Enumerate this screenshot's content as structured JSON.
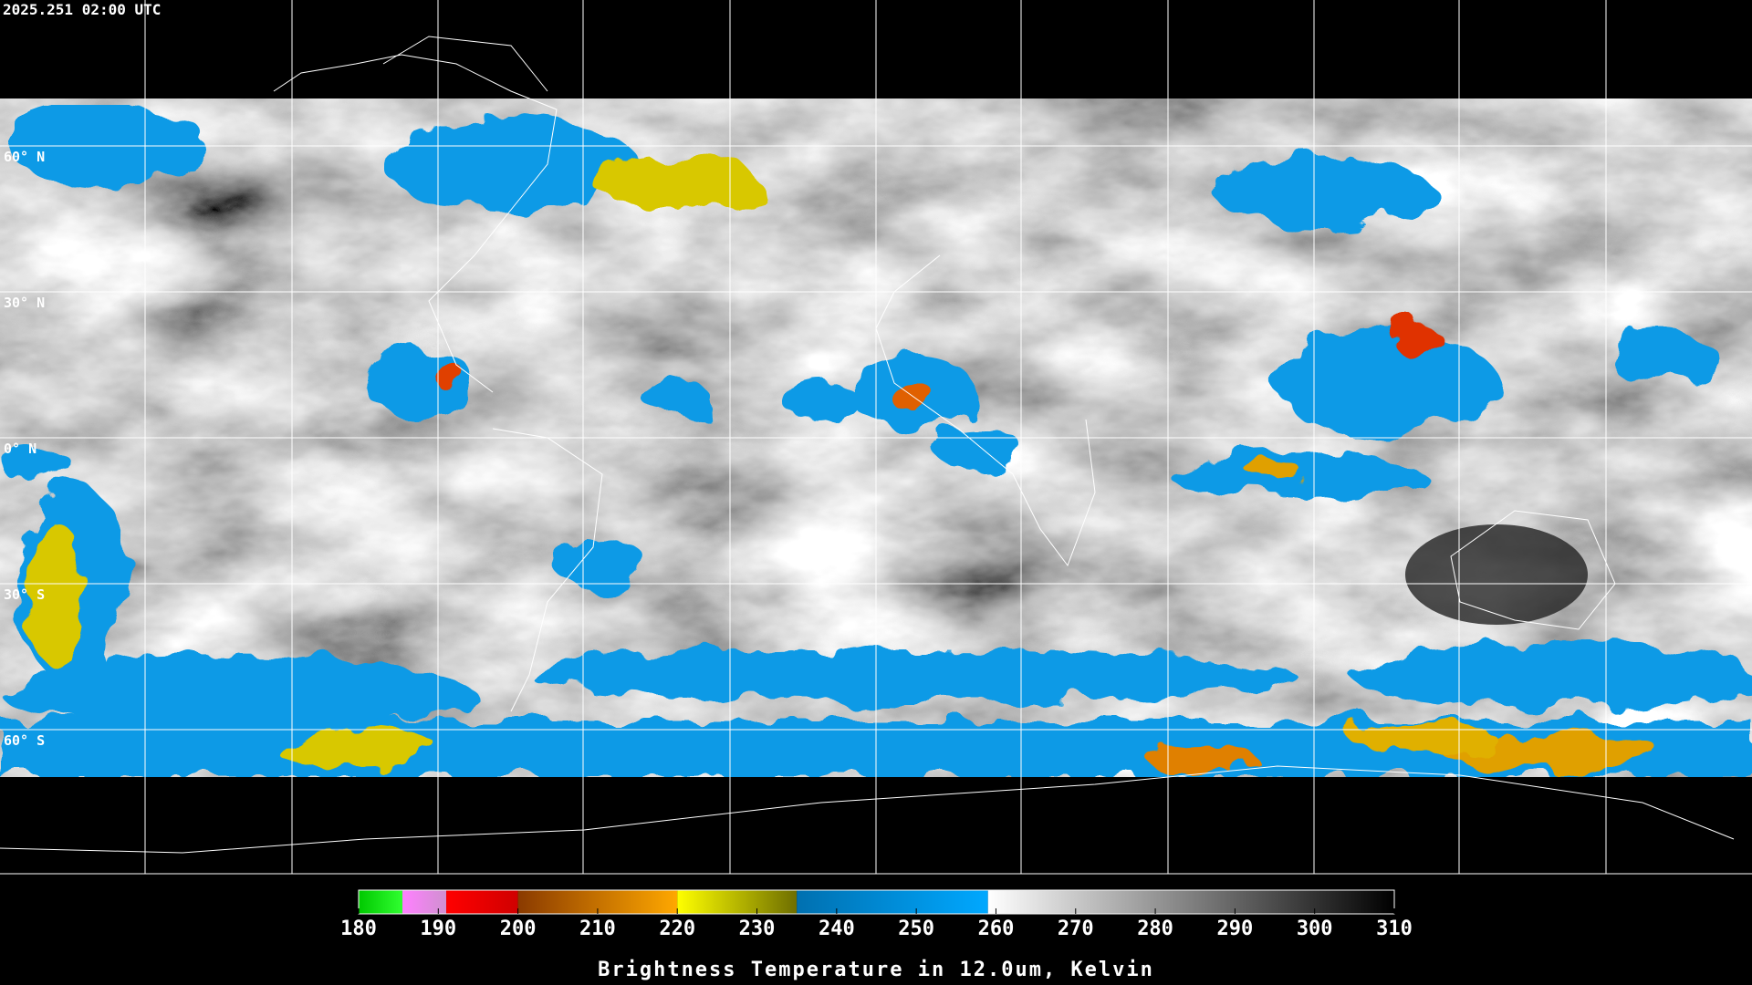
{
  "header": {
    "timestamp": "2025.251 02:00 UTC"
  },
  "map": {
    "latitude_lines": [
      {
        "value": 60,
        "label": "60° N"
      },
      {
        "value": 30,
        "label": "30° N"
      },
      {
        "value": 0,
        "label": "0° N"
      },
      {
        "value": -30,
        "label": "30° S"
      },
      {
        "value": -60,
        "label": "60° S"
      }
    ]
  },
  "colorbar": {
    "title": "Brightness Temperature in 12.0um, Kelvin",
    "range": [
      180,
      310
    ],
    "ticks": [
      180,
      190,
      200,
      210,
      220,
      230,
      240,
      250,
      260,
      270,
      280,
      290,
      300,
      310
    ],
    "segments": [
      {
        "from": 180,
        "to": 185.5,
        "colors": [
          "#00c800",
          "#30ff30"
        ]
      },
      {
        "from": 185.5,
        "to": 191,
        "colors": [
          "#ff80ff",
          "#d090d0"
        ]
      },
      {
        "from": 191,
        "to": 200,
        "colors": [
          "#ff0000",
          "#d00000"
        ]
      },
      {
        "from": 200,
        "to": 220,
        "colors": [
          "#8a3a00",
          "#ffa800"
        ]
      },
      {
        "from": 220,
        "to": 235,
        "colors": [
          "#ffff00",
          "#6e6e00"
        ]
      },
      {
        "from": 235,
        "to": 259,
        "colors": [
          "#0070b0",
          "#00a8ff"
        ]
      },
      {
        "from": 259,
        "to": 310,
        "colors": [
          "#ffffff",
          "#000000"
        ]
      }
    ]
  }
}
